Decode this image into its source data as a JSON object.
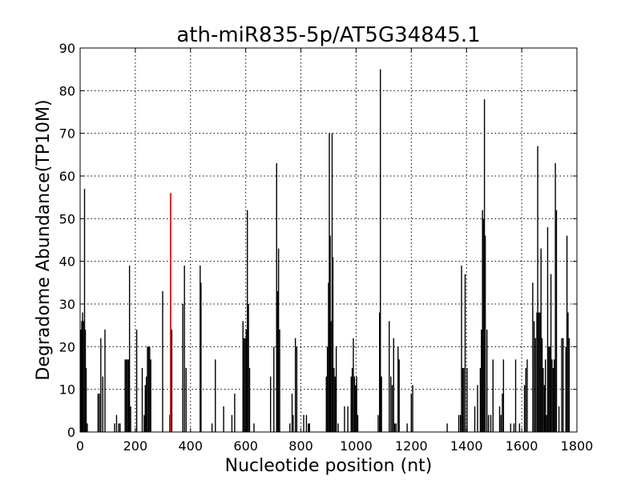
{
  "chart_data": {
    "type": "bar",
    "title": "ath-miR835-5p/AT5G34845.1",
    "xlabel": "Nucleotide position (nt)",
    "ylabel": "Degradome Abundance(TP10M)",
    "xlim": [
      0,
      1800
    ],
    "ylim": [
      0,
      90
    ],
    "x_ticks": [
      "0",
      "200",
      "400",
      "600",
      "800",
      "1000",
      "1200",
      "1400",
      "1600",
      "1800"
    ],
    "y_ticks": [
      "0",
      "10",
      "20",
      "30",
      "40",
      "50",
      "60",
      "70",
      "80",
      "90"
    ],
    "grid": true,
    "colors": {
      "bar": "#000000",
      "highlight": "#ff0000",
      "grid": "#000000"
    },
    "series": [
      {
        "values": [
          [
            3,
            24
          ],
          [
            6,
            26
          ],
          [
            9,
            28
          ],
          [
            12,
            26
          ],
          [
            16,
            57
          ],
          [
            19,
            24
          ],
          [
            22,
            15
          ],
          [
            26,
            2
          ],
          [
            65,
            9
          ],
          [
            70,
            9
          ],
          [
            75,
            22
          ],
          [
            82,
            13
          ],
          [
            90,
            24
          ],
          [
            125,
            2
          ],
          [
            132,
            4
          ],
          [
            140,
            2
          ],
          [
            145,
            2
          ],
          [
            163,
            17
          ],
          [
            167,
            17
          ],
          [
            171,
            17
          ],
          [
            175,
            17
          ],
          [
            179,
            39
          ],
          [
            183,
            6
          ],
          [
            205,
            24
          ],
          [
            225,
            15
          ],
          [
            232,
            4
          ],
          [
            236,
            11
          ],
          [
            240,
            13
          ],
          [
            244,
            20
          ],
          [
            248,
            20
          ],
          [
            252,
            20
          ],
          [
            256,
            17
          ],
          [
            299,
            33
          ],
          [
            325,
            4
          ],
          [
            332,
            24
          ],
          [
            372,
            30
          ],
          [
            378,
            39
          ],
          [
            384,
            15
          ],
          [
            435,
            39
          ],
          [
            438,
            35
          ],
          [
            478,
            2
          ],
          [
            490,
            17
          ],
          [
            520,
            6
          ],
          [
            550,
            4
          ],
          [
            560,
            9
          ],
          [
            590,
            26
          ],
          [
            594,
            22
          ],
          [
            598,
            22
          ],
          [
            602,
            24
          ],
          [
            606,
            52
          ],
          [
            610,
            30
          ],
          [
            614,
            15
          ],
          [
            630,
            2
          ],
          [
            690,
            13
          ],
          [
            702,
            20
          ],
          [
            712,
            63
          ],
          [
            715,
            33
          ],
          [
            719,
            43
          ],
          [
            723,
            24
          ],
          [
            760,
            2
          ],
          [
            768,
            9
          ],
          [
            772,
            4
          ],
          [
            780,
            22
          ],
          [
            785,
            20
          ],
          [
            810,
            4
          ],
          [
            820,
            4
          ],
          [
            827,
            2
          ],
          [
            831,
            2
          ],
          [
            892,
            13
          ],
          [
            896,
            20
          ],
          [
            900,
            35
          ],
          [
            903,
            70
          ],
          [
            906,
            46
          ],
          [
            909,
            26
          ],
          [
            913,
            70
          ],
          [
            916,
            41
          ],
          [
            920,
            15
          ],
          [
            924,
            13
          ],
          [
            928,
            20
          ],
          [
            935,
            2
          ],
          [
            958,
            6
          ],
          [
            970,
            6
          ],
          [
            982,
            13
          ],
          [
            986,
            15
          ],
          [
            990,
            22
          ],
          [
            994,
            13
          ],
          [
            998,
            11
          ],
          [
            1002,
            13
          ],
          [
            1006,
            4
          ],
          [
            1080,
            4
          ],
          [
            1085,
            28
          ],
          [
            1088,
            85
          ],
          [
            1092,
            13
          ],
          [
            1120,
            26
          ],
          [
            1126,
            13
          ],
          [
            1131,
            11
          ],
          [
            1136,
            22
          ],
          [
            1140,
            2
          ],
          [
            1145,
            2
          ],
          [
            1152,
            20
          ],
          [
            1156,
            17
          ],
          [
            1185,
            2
          ],
          [
            1200,
            9
          ],
          [
            1205,
            11
          ],
          [
            1330,
            2
          ],
          [
            1372,
            4
          ],
          [
            1378,
            4
          ],
          [
            1382,
            39
          ],
          [
            1386,
            15
          ],
          [
            1390,
            15
          ],
          [
            1395,
            37
          ],
          [
            1402,
            15
          ],
          [
            1430,
            6
          ],
          [
            1440,
            11
          ],
          [
            1450,
            15
          ],
          [
            1454,
            24
          ],
          [
            1458,
            52
          ],
          [
            1461,
            50
          ],
          [
            1465,
            78
          ],
          [
            1468,
            46
          ],
          [
            1474,
            24
          ],
          [
            1480,
            4
          ],
          [
            1488,
            4
          ],
          [
            1496,
            17
          ],
          [
            1520,
            6
          ],
          [
            1525,
            4
          ],
          [
            1530,
            9
          ],
          [
            1534,
            17
          ],
          [
            1560,
            2
          ],
          [
            1572,
            2
          ],
          [
            1578,
            17
          ],
          [
            1592,
            2
          ],
          [
            1610,
            11
          ],
          [
            1615,
            15
          ],
          [
            1620,
            17
          ],
          [
            1640,
            35
          ],
          [
            1645,
            26
          ],
          [
            1650,
            22
          ],
          [
            1655,
            28
          ],
          [
            1658,
            67
          ],
          [
            1662,
            28
          ],
          [
            1666,
            28
          ],
          [
            1670,
            43
          ],
          [
            1674,
            22
          ],
          [
            1678,
            15
          ],
          [
            1682,
            11
          ],
          [
            1686,
            17
          ],
          [
            1690,
            4
          ],
          [
            1694,
            48
          ],
          [
            1698,
            20
          ],
          [
            1702,
            20
          ],
          [
            1706,
            37
          ],
          [
            1710,
            17
          ],
          [
            1714,
            15
          ],
          [
            1718,
            17
          ],
          [
            1722,
            63
          ],
          [
            1726,
            52
          ],
          [
            1735,
            6
          ],
          [
            1745,
            22
          ],
          [
            1750,
            22
          ],
          [
            1760,
            20
          ],
          [
            1764,
            46
          ],
          [
            1768,
            28
          ],
          [
            1772,
            22
          ]
        ]
      },
      {
        "highlight": true,
        "values": [
          [
            328,
            56
          ]
        ]
      }
    ]
  }
}
